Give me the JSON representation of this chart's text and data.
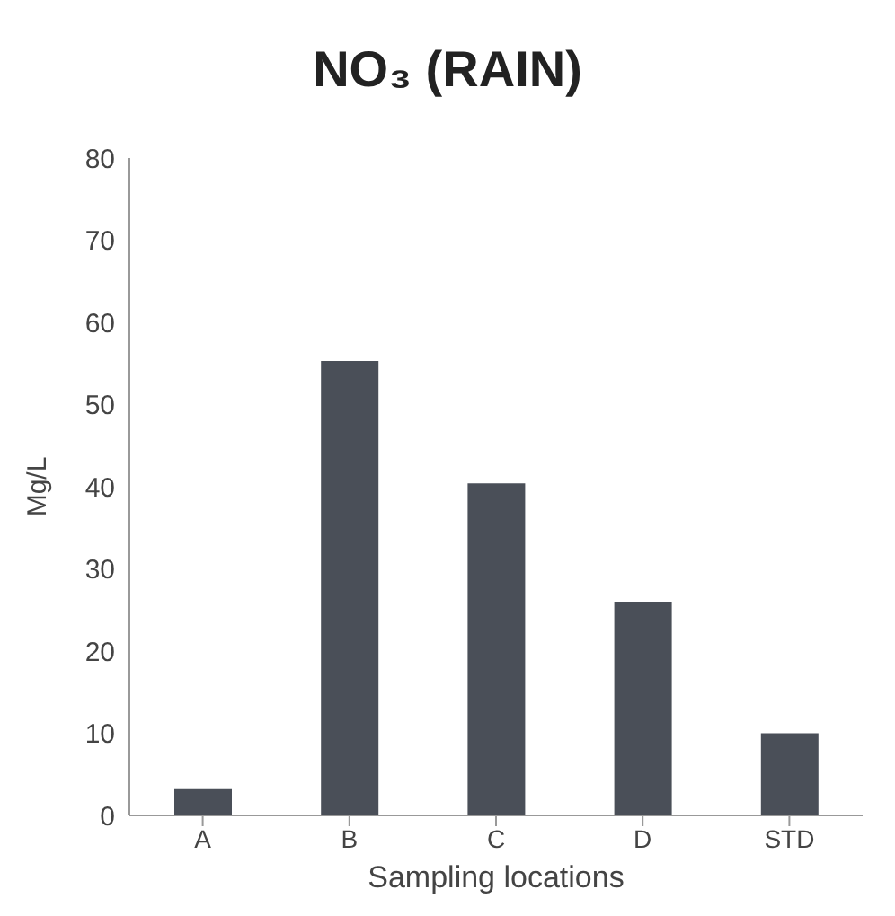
{
  "chart_data": {
    "type": "bar",
    "title": "NO₃ (RAIN)",
    "xlabel": "Sampling locations",
    "ylabel": "Mg/L",
    "categories": [
      "A",
      "B",
      "C",
      "D",
      "STD"
    ],
    "values": [
      3.2,
      55.3,
      40.4,
      26,
      10
    ],
    "color": "#4a4f58",
    "ylim": [
      0,
      80
    ],
    "yticks": [
      0,
      10,
      20,
      30,
      40,
      50,
      60,
      70,
      80
    ],
    "grid": false
  }
}
